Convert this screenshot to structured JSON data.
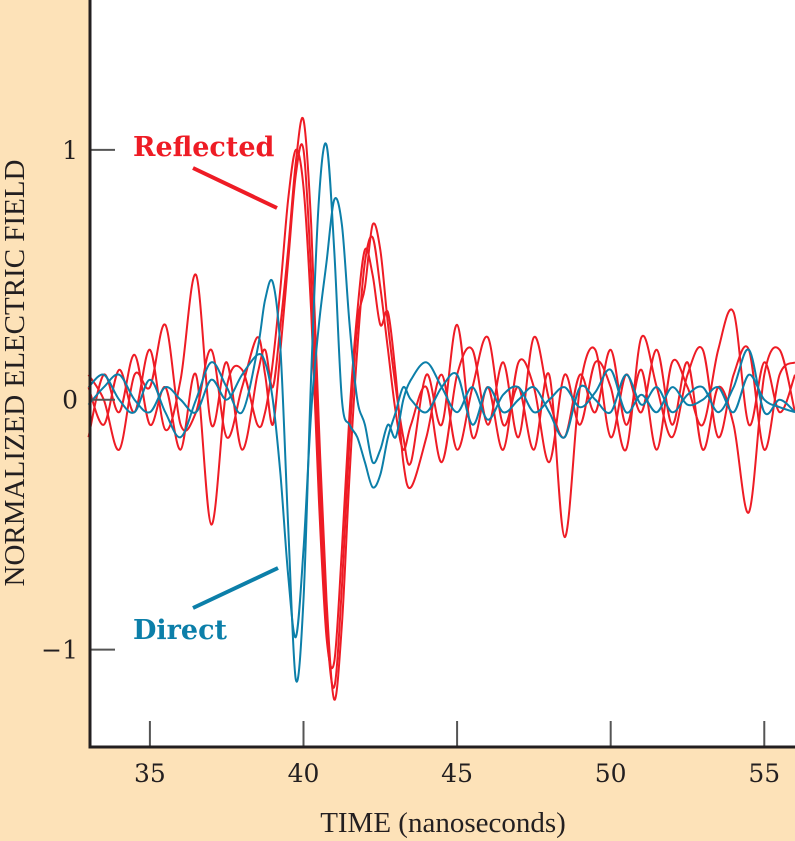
{
  "chart_data": {
    "type": "line",
    "title": "",
    "xlabel": "TIME (nanoseconds)",
    "ylabel": "NORMALIZED ELECTRIC FIELD",
    "xlim": [
      33.05,
      56.0
    ],
    "ylim": [
      -1.39,
      1.6
    ],
    "xticks": [
      35,
      40,
      45,
      50,
      55
    ],
    "xtick_labels": [
      "35",
      "40",
      "45",
      "50",
      "55"
    ],
    "yticks": [
      1,
      0,
      -1
    ],
    "ytick_labels": [
      "1",
      "0",
      "−1"
    ],
    "grid": false,
    "colors": {
      "reflected": "#ee1c25",
      "direct": "#0c7fa9",
      "background": "#fde2b8"
    },
    "annotations": [
      {
        "text": "Reflected",
        "group": "reflected"
      },
      {
        "text": "Direct",
        "group": "direct"
      }
    ],
    "x": [
      33,
      33.5,
      34,
      34.5,
      35,
      35.5,
      36,
      36.5,
      37,
      37.5,
      38,
      38.5,
      38.75,
      39,
      39.25,
      39.5,
      39.75,
      40,
      40.25,
      40.5,
      40.75,
      41,
      41.25,
      41.5,
      41.75,
      42,
      42.25,
      42.5,
      42.75,
      43,
      43.25,
      43.5,
      44,
      44.5,
      45,
      45.5,
      46,
      46.5,
      47,
      47.5,
      48,
      48.5,
      49,
      49.5,
      50,
      50.5,
      51,
      51.5,
      52,
      52.5,
      53,
      53.5,
      54,
      54.5,
      55,
      55.5,
      56
    ],
    "series": [
      {
        "name": "Reflected 1",
        "group": "reflected",
        "values": [
          0.05,
          -0.1,
          0.12,
          -0.05,
          0.2,
          -0.12,
          0.08,
          0.5,
          -0.1,
          0.15,
          -0.2,
          0.1,
          0.2,
          0.05,
          0.3,
          0.6,
          0.95,
          1.12,
          0.7,
          -0.1,
          -0.8,
          -1.2,
          -0.9,
          -0.3,
          0.2,
          0.55,
          0.65,
          0.45,
          0.2,
          -0.05,
          -0.2,
          -0.1,
          0.05,
          -0.25,
          0.1,
          0.2,
          -0.1,
          0.15,
          -0.15,
          0.25,
          0.0,
          -0.15,
          0.1,
          -0.05,
          0.2,
          -0.1,
          0.12,
          -0.2,
          0.15,
          0.05,
          -0.1,
          0.2,
          0.35,
          -0.1,
          0.15,
          -0.05,
          0.1
        ]
      },
      {
        "name": "Reflected 2",
        "group": "reflected",
        "values": [
          -0.15,
          0.1,
          -0.05,
          0.18,
          -0.1,
          0.05,
          -0.2,
          0.1,
          -0.5,
          0.05,
          0.12,
          -0.1,
          -0.05,
          0.15,
          0.45,
          0.8,
          1.0,
          0.85,
          0.35,
          -0.4,
          -0.95,
          -1.05,
          -0.6,
          -0.05,
          0.35,
          0.6,
          0.5,
          0.3,
          0.35,
          0.1,
          -0.25,
          -0.35,
          -0.15,
          0.1,
          -0.2,
          0.05,
          0.25,
          -0.1,
          0.05,
          -0.2,
          0.1,
          -0.55,
          0.05,
          0.2,
          -0.15,
          0.1,
          -0.05,
          0.2,
          -0.1,
          0.15,
          -0.2,
          0.05,
          -0.1,
          -0.45,
          0.1,
          0.2,
          -0.05
        ]
      },
      {
        "name": "Reflected 3",
        "group": "reflected",
        "values": [
          0.1,
          0.0,
          -0.2,
          0.1,
          0.05,
          0.3,
          -0.1,
          -0.05,
          0.2,
          -0.15,
          0.05,
          0.25,
          0.1,
          -0.1,
          0.2,
          0.55,
          0.9,
          1.0,
          0.5,
          -0.25,
          -0.9,
          -1.15,
          -0.75,
          -0.15,
          0.3,
          0.45,
          0.7,
          0.6,
          0.3,
          0.05,
          -0.15,
          -0.25,
          0.1,
          -0.1,
          0.3,
          -0.15,
          0.05,
          -0.2,
          0.15,
          0.05,
          -0.25,
          0.1,
          -0.1,
          0.15,
          0.05,
          -0.2,
          0.25,
          0.05,
          -0.15,
          0.1,
          0.2,
          -0.15,
          0.1,
          0.2,
          -0.2,
          0.1,
          0.15
        ]
      },
      {
        "name": "Direct 1",
        "group": "direct",
        "values": [
          0.05,
          0.1,
          0.0,
          -0.05,
          0.08,
          -0.05,
          -0.15,
          0.0,
          0.15,
          0.05,
          -0.05,
          0.2,
          0.4,
          0.47,
          0.2,
          -0.5,
          -1.12,
          -0.8,
          0.1,
          0.8,
          1.02,
          0.6,
          0.0,
          -0.1,
          -0.15,
          -0.25,
          -0.35,
          -0.3,
          -0.15,
          -0.05,
          0.05,
          0.0,
          -0.05,
          0.05,
          0.1,
          -0.1,
          0.05,
          -0.05,
          0.0,
          0.05,
          -0.05,
          -0.15,
          0.05,
          0.0,
          -0.05,
          0.1,
          -0.02,
          0.05,
          -0.05,
          0.02,
          0.05,
          -0.05,
          0.05,
          0.2,
          -0.05,
          0.0,
          -0.05
        ]
      },
      {
        "name": "Direct 2",
        "group": "direct",
        "values": [
          -0.02,
          0.05,
          0.1,
          0.0,
          -0.05,
          0.05,
          0.0,
          -0.05,
          0.08,
          0.0,
          0.1,
          0.18,
          0.15,
          0.0,
          -0.3,
          -0.7,
          -0.95,
          -0.6,
          -0.05,
          0.3,
          0.55,
          0.8,
          0.7,
          0.3,
          0.0,
          -0.1,
          -0.25,
          -0.2,
          -0.1,
          -0.15,
          0.0,
          0.08,
          0.15,
          0.05,
          -0.05,
          0.05,
          -0.08,
          0.02,
          0.05,
          -0.05,
          0.0,
          0.05,
          -0.03,
          0.03,
          0.12,
          -0.05,
          0.02,
          -0.05,
          0.05,
          -0.02,
          0.0,
          0.05,
          -0.05,
          0.1,
          0.0,
          -0.03,
          -0.05
        ]
      }
    ]
  }
}
